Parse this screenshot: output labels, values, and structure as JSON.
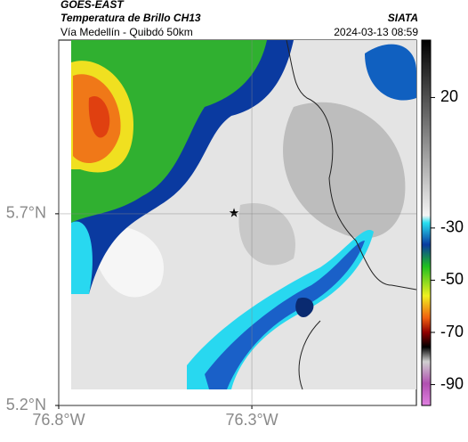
{
  "header": {
    "title": "GOES-EAST",
    "subtitle": "Temperatura de Brillo CH13",
    "region": "Vía Medellín - Quibdó 50km",
    "source": "SIATA",
    "datetime": "2024-03-13 08:59"
  },
  "map": {
    "xlim": [
      -76.8,
      -75.874
    ],
    "ylim": [
      5.2,
      6.153
    ],
    "xticks": [
      {
        "value": -76.8,
        "label": "76.8°W"
      },
      {
        "value": -76.3,
        "label": "76.3°W"
      }
    ],
    "yticks": [
      {
        "value": 5.7,
        "label": "5.7°N"
      },
      {
        "value": 5.2,
        "label": "5.2°N"
      }
    ],
    "grid": true
  },
  "colorbar": {
    "lim": [
      -98,
      42
    ],
    "ticks": [
      20,
      -30,
      -50,
      -70,
      -90
    ]
  }
}
